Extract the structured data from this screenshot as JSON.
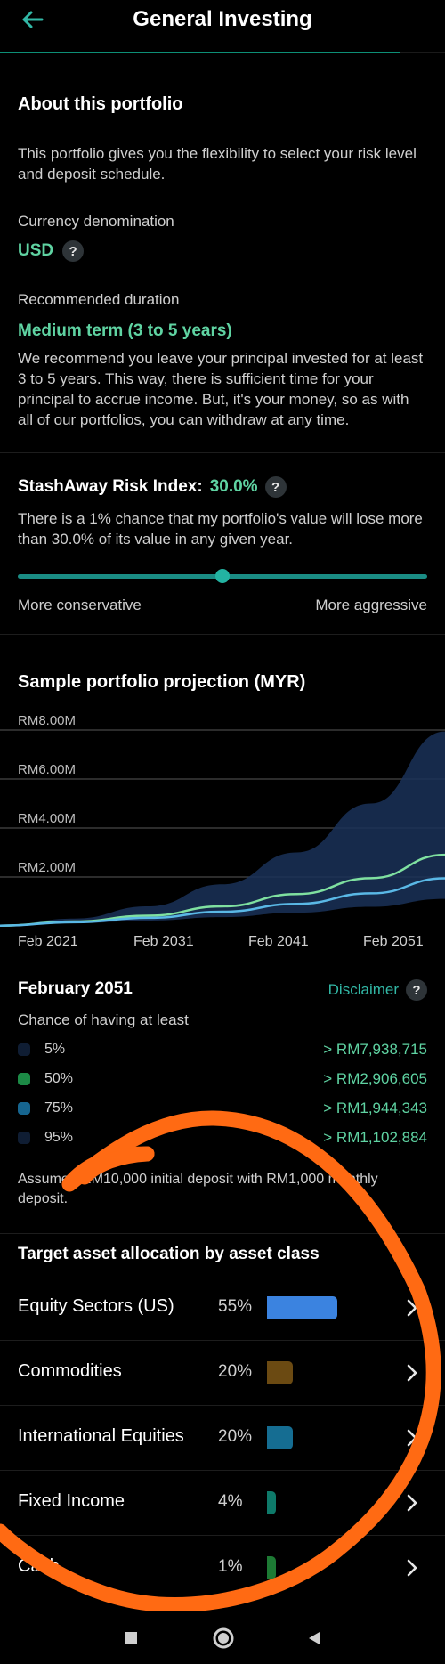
{
  "header": {
    "title": "General Investing",
    "back_icon": "arrow-left-icon",
    "progress": 0.9
  },
  "about": {
    "title": "About this portfolio",
    "description": "This portfolio gives you the flexibility to select your risk level and deposit schedule.",
    "currency_label": "Currency denomination",
    "currency_value": "USD",
    "duration_label": "Recommended duration",
    "duration_value": "Medium term (3 to 5 years)",
    "duration_description": "We recommend you leave your principal invested for at least 3 to 5 years. This way, there is sufficient time for your principal to accrue income. But, it's your money, so as with all of our portfolios, you can withdraw at any time."
  },
  "risk": {
    "label": "StashAway Risk Index:",
    "value": "30.0%",
    "description": "There is a 1% chance that my portfolio's value will lose more than 30.0% of its value in any given year.",
    "slider_level": 0.5,
    "left_label": "More conservative",
    "right_label": "More aggressive"
  },
  "projection": {
    "title": "Sample portfolio projection (MYR)",
    "date": "February 2051",
    "disclaimer": "Disclaimer",
    "chance_label": "Chance of having at least",
    "legend": [
      {
        "label": "5%",
        "value": "> RM7,938,715",
        "color": "#0f1d33"
      },
      {
        "label": "50%",
        "value": "> RM2,906,605",
        "color": "#1c8a46"
      },
      {
        "label": "75%",
        "value": "> RM1,944,343",
        "color": "#16658f"
      },
      {
        "label": "95%",
        "value": "> RM1,102,884",
        "color": "#0f1d33"
      }
    ],
    "assumed": "Assumed RM10,000 initial deposit with RM1,000 monthly deposit."
  },
  "chart_data": {
    "type": "area",
    "title": "Sample portfolio projection (MYR)",
    "xlabel": "",
    "ylabel": "",
    "x_tick_labels": [
      "Feb 2021",
      "Feb 2031",
      "Feb 2041",
      "Feb 2051"
    ],
    "y_tick_labels": [
      "RM8.00M",
      "RM6.00M",
      "RM4.00M",
      "RM2.00M"
    ],
    "y_ticks": [
      8000000,
      6000000,
      4000000,
      2000000
    ],
    "xlim": [
      2021,
      2051
    ],
    "ylim": [
      0,
      8000000
    ],
    "grid": true,
    "x": [
      2021,
      2026,
      2031,
      2036,
      2041,
      2046,
      2051
    ],
    "series": [
      {
        "name": "5%",
        "kind": "area",
        "color": "#1a3158",
        "values": [
          10000,
          300000,
          800000,
          1700000,
          3000000,
          5000000,
          7938715
        ]
      },
      {
        "name": "50%",
        "kind": "line",
        "color": "#7fe0a0",
        "values": [
          10000,
          180000,
          420000,
          800000,
          1300000,
          1950000,
          2906605
        ]
      },
      {
        "name": "75%",
        "kind": "line",
        "color": "#5ab8e6",
        "values": [
          10000,
          150000,
          330000,
          580000,
          900000,
          1330000,
          1944343
        ]
      },
      {
        "name": "95%",
        "kind": "area",
        "color": "#1a3158",
        "values": [
          10000,
          110000,
          220000,
          360000,
          540000,
          780000,
          1102884
        ]
      }
    ]
  },
  "allocation": {
    "title": "Target asset allocation by asset class",
    "items": [
      {
        "name": "Equity Sectors (US)",
        "pct": "55%",
        "share": 0.55,
        "color": "#3b83e0"
      },
      {
        "name": "Commodities",
        "pct": "20%",
        "share": 0.2,
        "color": "#6b4a12"
      },
      {
        "name": "International Equities",
        "pct": "20%",
        "share": 0.2,
        "color": "#156d92"
      },
      {
        "name": "Fixed Income",
        "pct": "4%",
        "share": 0.04,
        "color": "#0e7a6a"
      },
      {
        "name": "Cash",
        "pct": "1%",
        "share": 0.01,
        "color": "#1d7a34"
      }
    ]
  },
  "icons": {
    "help": "?",
    "chevron": "chevron-right-icon",
    "nav": [
      "square-icon",
      "home-circle-icon",
      "back-triangle-icon"
    ]
  },
  "colors": {
    "accent": "#5fd3a2",
    "teal": "#32b8a6",
    "scribble": "#ff6a13",
    "background": "#000000"
  }
}
